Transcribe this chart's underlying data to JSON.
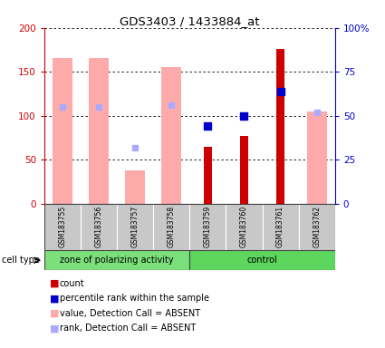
{
  "title": "GDS3403 / 1433884_at",
  "samples": [
    "GSM183755",
    "GSM183756",
    "GSM183757",
    "GSM183758",
    "GSM183759",
    "GSM183760",
    "GSM183761",
    "GSM183762"
  ],
  "groups": {
    "zone of polarizing activity": [
      0,
      1,
      2,
      3
    ],
    "control": [
      4,
      5,
      6,
      7
    ]
  },
  "count_values": [
    null,
    null,
    null,
    null,
    65,
    77,
    176,
    null
  ],
  "percentile_values": [
    null,
    null,
    null,
    null,
    44,
    50,
    64,
    null
  ],
  "value_absent": [
    166,
    166,
    38,
    155,
    null,
    null,
    null,
    105
  ],
  "rank_absent": [
    55,
    55,
    32,
    56,
    null,
    null,
    null,
    52
  ],
  "ylim_left": [
    0,
    200
  ],
  "ylim_right": [
    0,
    100
  ],
  "left_ticks": [
    0,
    50,
    100,
    150,
    200
  ],
  "right_ticks": [
    0,
    25,
    50,
    75,
    100
  ],
  "left_tick_labels": [
    "0",
    "50",
    "100",
    "150",
    "200"
  ],
  "right_tick_labels": [
    "0",
    "25",
    "50",
    "75",
    "100%"
  ],
  "left_axis_color": "#cc0000",
  "right_axis_color": "#0000cc",
  "count_color": "#cc0000",
  "percentile_color": "#0000cc",
  "value_absent_color": "#ffaaaa",
  "rank_absent_color": "#aaaaff",
  "green_light": "#7be07b",
  "green_dark": "#5cd65c",
  "legend_items": [
    {
      "label": "count",
      "color": "#cc0000"
    },
    {
      "label": "percentile rank within the sample",
      "color": "#0000cc"
    },
    {
      "label": "value, Detection Call = ABSENT",
      "color": "#ffaaaa"
    },
    {
      "label": "rank, Detection Call = ABSENT",
      "color": "#aaaaff"
    }
  ]
}
